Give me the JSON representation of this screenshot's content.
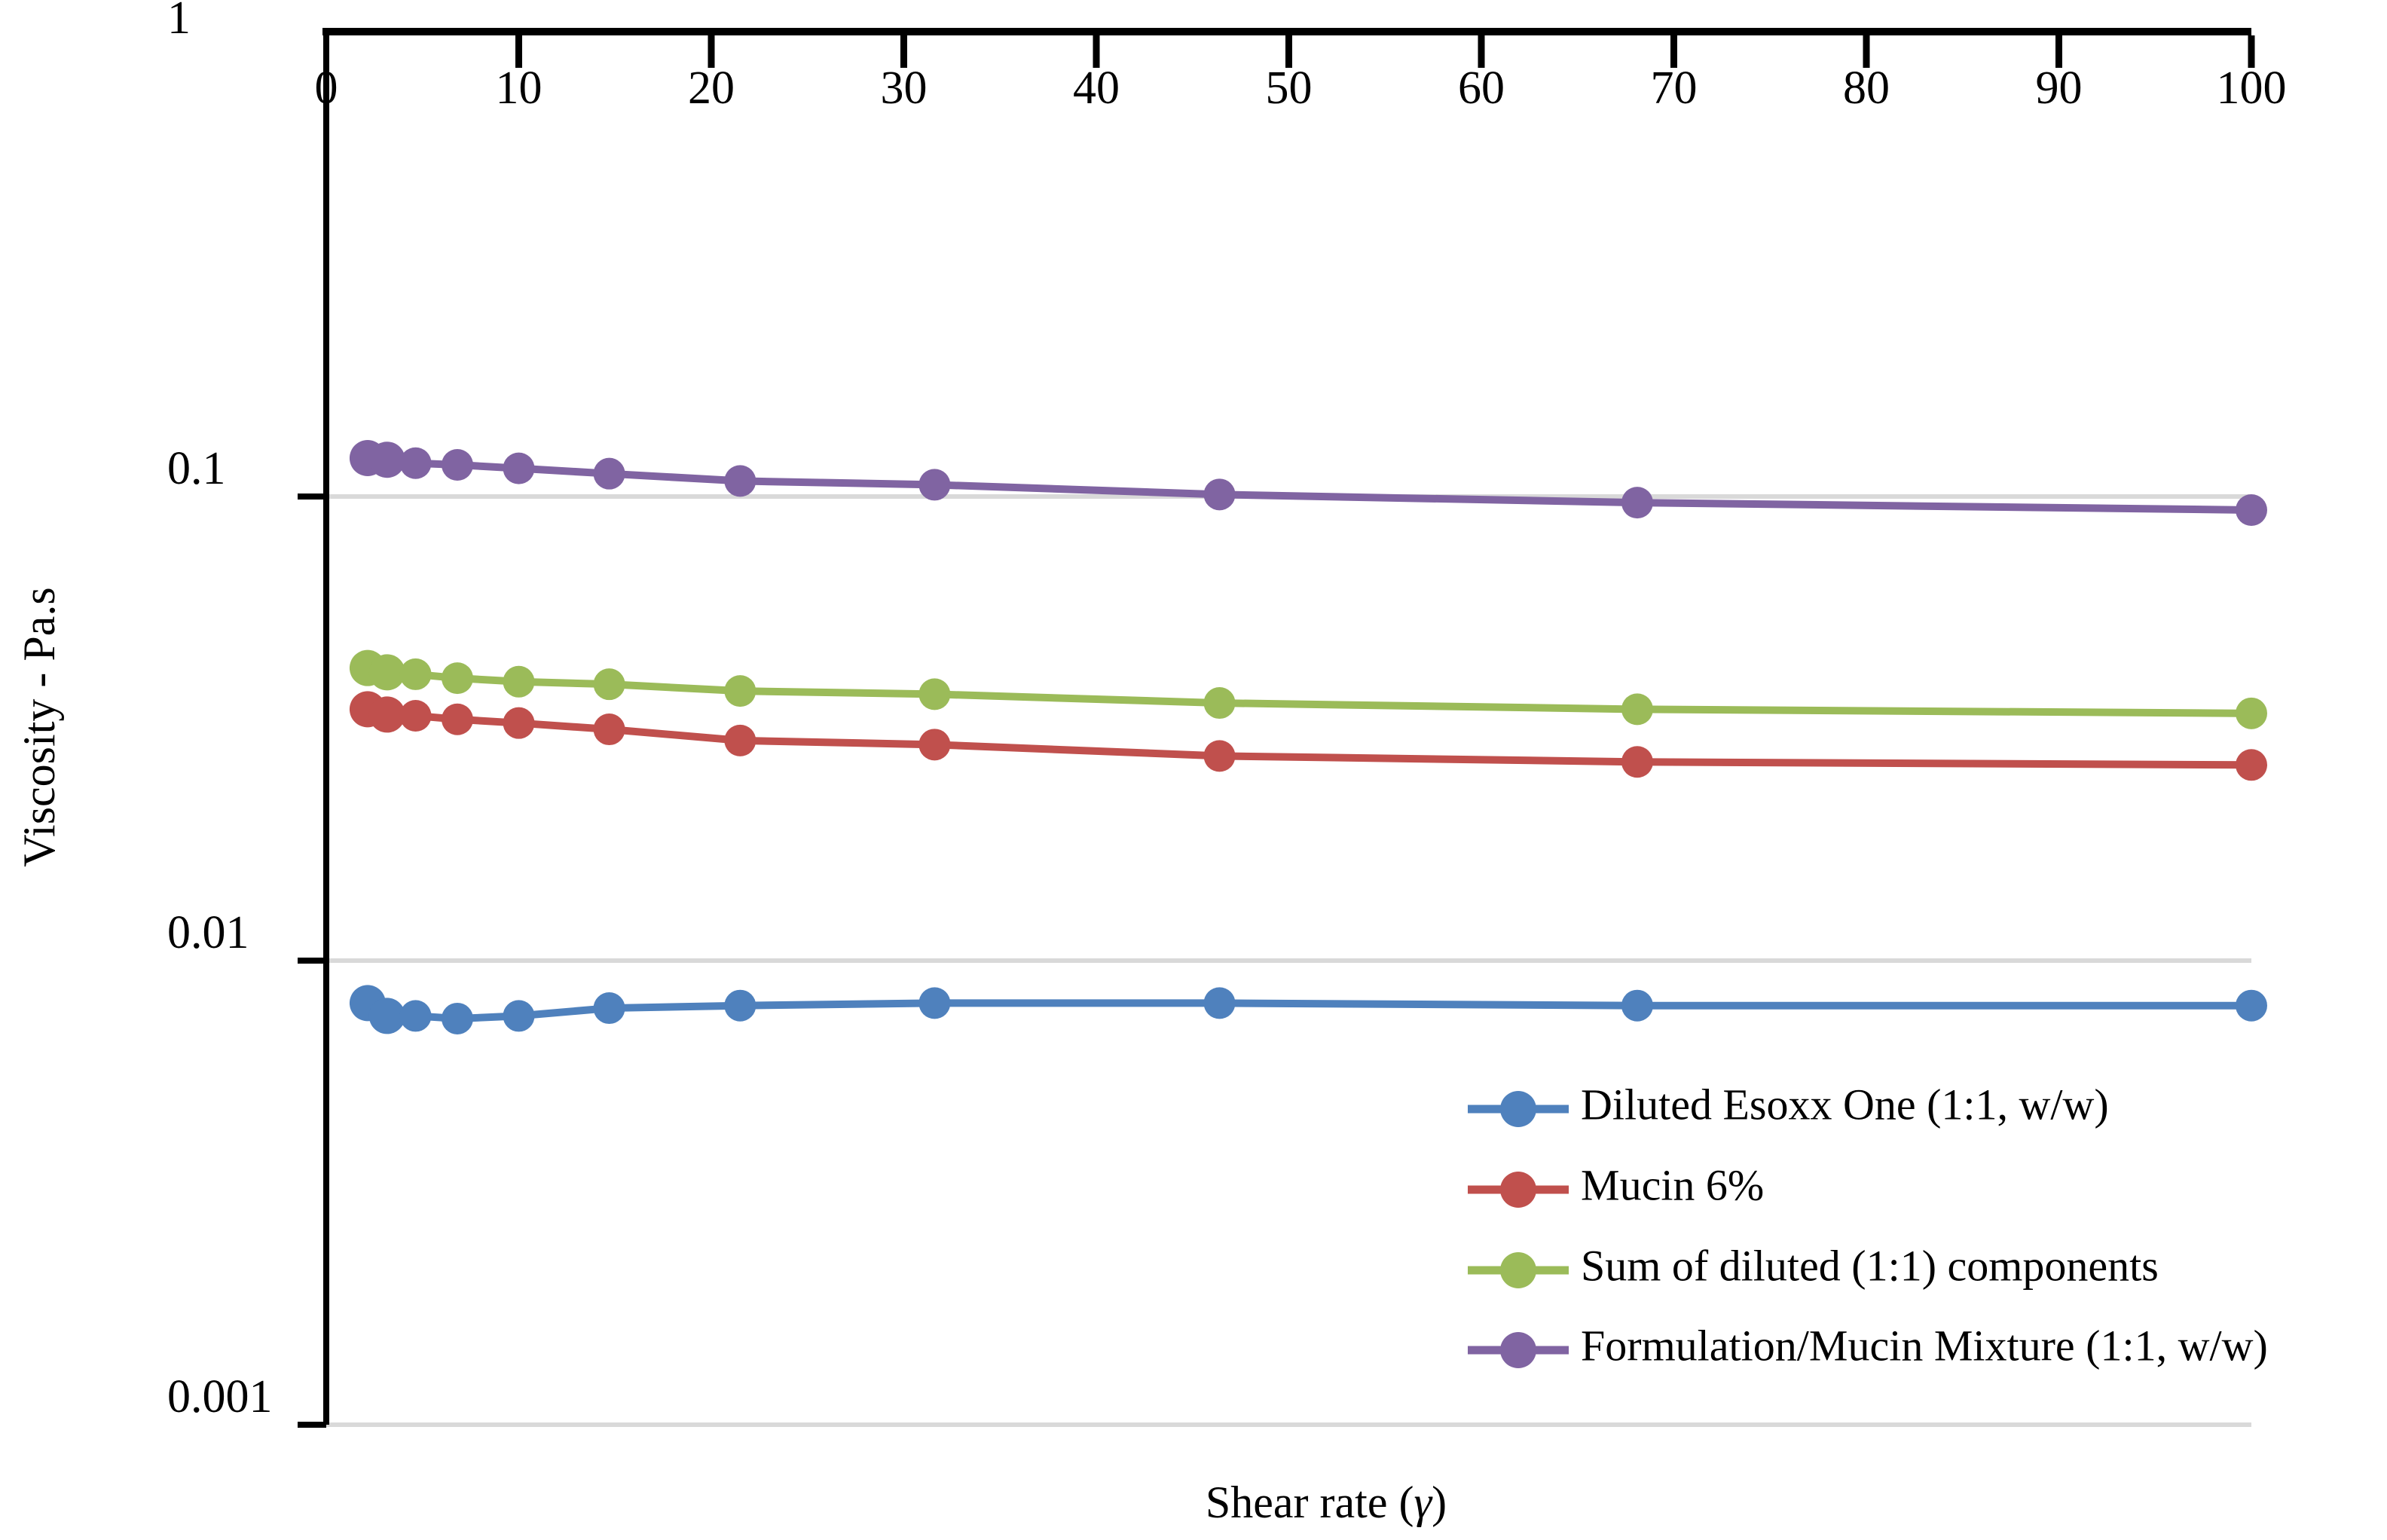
{
  "chart_data": {
    "type": "line",
    "title": "",
    "xlabel_parts": [
      "Shear rate (",
      "γ",
      ")"
    ],
    "ylabel": "Viscosity - Pa.s",
    "x_axis": {
      "min": 0,
      "max": 100,
      "tick_step": 10,
      "tick_labels": [
        "0",
        "10",
        "20",
        "30",
        "40",
        "50",
        "60",
        "70",
        "80",
        "90",
        "100"
      ],
      "position": "top"
    },
    "y_axis": {
      "scale": "log",
      "min": 0.001,
      "max": 1,
      "tick_labels": [
        "1",
        "0.1",
        "0.01",
        "0.001"
      ],
      "tick_values": [
        1,
        0.1,
        0.01,
        0.001
      ],
      "gridlines_at": [
        0.1,
        0.01,
        0.001
      ]
    },
    "x": [
      2.15,
      3.16,
      4.64,
      6.81,
      10,
      14.7,
      21.5,
      31.6,
      46.4,
      68.1,
      100
    ],
    "series": [
      {
        "name": "Diluted Esoxx One (1:1, w/w)",
        "color": "#4F81BD",
        "values": [
          0.0081,
          0.0076,
          0.0076,
          0.0075,
          0.0076,
          0.0079,
          0.008,
          0.0081,
          0.0081,
          0.008,
          0.008
        ]
      },
      {
        "name": "Mucin 6%",
        "color": "#C0504D",
        "values": [
          0.0348,
          0.0339,
          0.0337,
          0.0331,
          0.0325,
          0.0315,
          0.0298,
          0.0292,
          0.0276,
          0.0268,
          0.0264
        ]
      },
      {
        "name": "Sum of diluted (1:1) components",
        "color": "#9BBB59",
        "values": [
          0.0427,
          0.0418,
          0.0414,
          0.0406,
          0.0399,
          0.0394,
          0.0381,
          0.0375,
          0.0359,
          0.0348,
          0.0341
        ]
      },
      {
        "name": "Formulation/Mucin Mixture (1:1, w/w)",
        "color": "#8064A2",
        "values": [
          0.121,
          0.12,
          0.118,
          0.117,
          0.115,
          0.112,
          0.108,
          0.106,
          0.101,
          0.097,
          0.0935
        ]
      }
    ],
    "legend": {
      "position": "inside-bottom-right",
      "marker": "circle-on-line"
    },
    "colors": {
      "axis": "#000000",
      "gridline": "#D9D9D9",
      "background": "#FFFFFF"
    }
  }
}
